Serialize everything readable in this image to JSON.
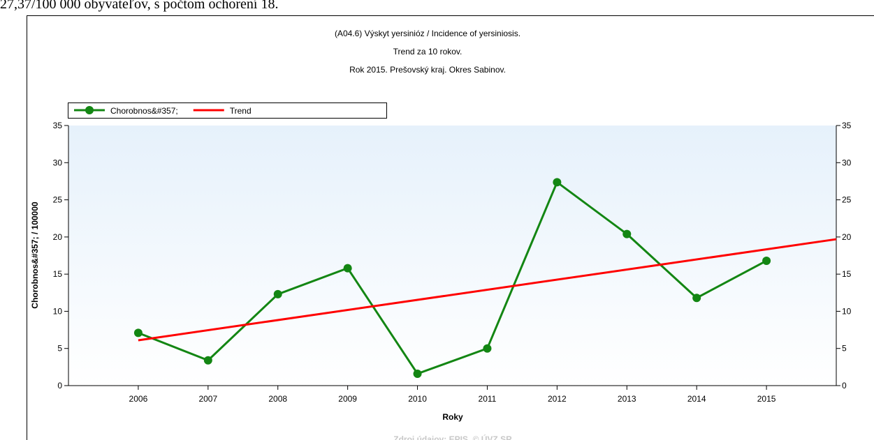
{
  "header_text": "27,37/100 000 obyvateľov, s počtom ochorení 18.",
  "chart_data": {
    "type": "line",
    "title": [
      "(A04.6) Výskyt yersinióz / Incidence of yersiniosis.",
      "Trend za 10 rokov.",
      "Rok 2015. Prešovský kraj. Okres Sabinov."
    ],
    "x_label": "Roky",
    "y_label": "Chorobnos&#357; / 100000",
    "source": "Zdroj údajov: EPIS, © ÚVZ SR",
    "xlim": [
      2005,
      2016
    ],
    "xticks": [
      2006,
      2007,
      2008,
      2009,
      2010,
      2011,
      2012,
      2013,
      2014,
      2015
    ],
    "ylim": [
      0,
      35
    ],
    "yticks": [
      0,
      5,
      10,
      15,
      20,
      25,
      30,
      35
    ],
    "y2lim": [
      0,
      35
    ],
    "y2ticks": [
      0,
      5,
      10,
      15,
      20,
      25,
      30,
      35
    ],
    "series": [
      {
        "name": "Chorobnos&#357;",
        "color": "#138613",
        "markers": true,
        "x": [
          2006,
          2007,
          2008,
          2009,
          2010,
          2011,
          2012,
          2013,
          2014,
          2015
        ],
        "values": [
          7.1,
          3.4,
          12.3,
          15.8,
          1.6,
          5.0,
          27.37,
          20.4,
          11.8,
          16.8
        ]
      },
      {
        "name": "Trend",
        "color": "#ff0000",
        "markers": false,
        "x": [
          2006,
          2016
        ],
        "values": [
          6.1,
          19.7
        ]
      }
    ]
  }
}
